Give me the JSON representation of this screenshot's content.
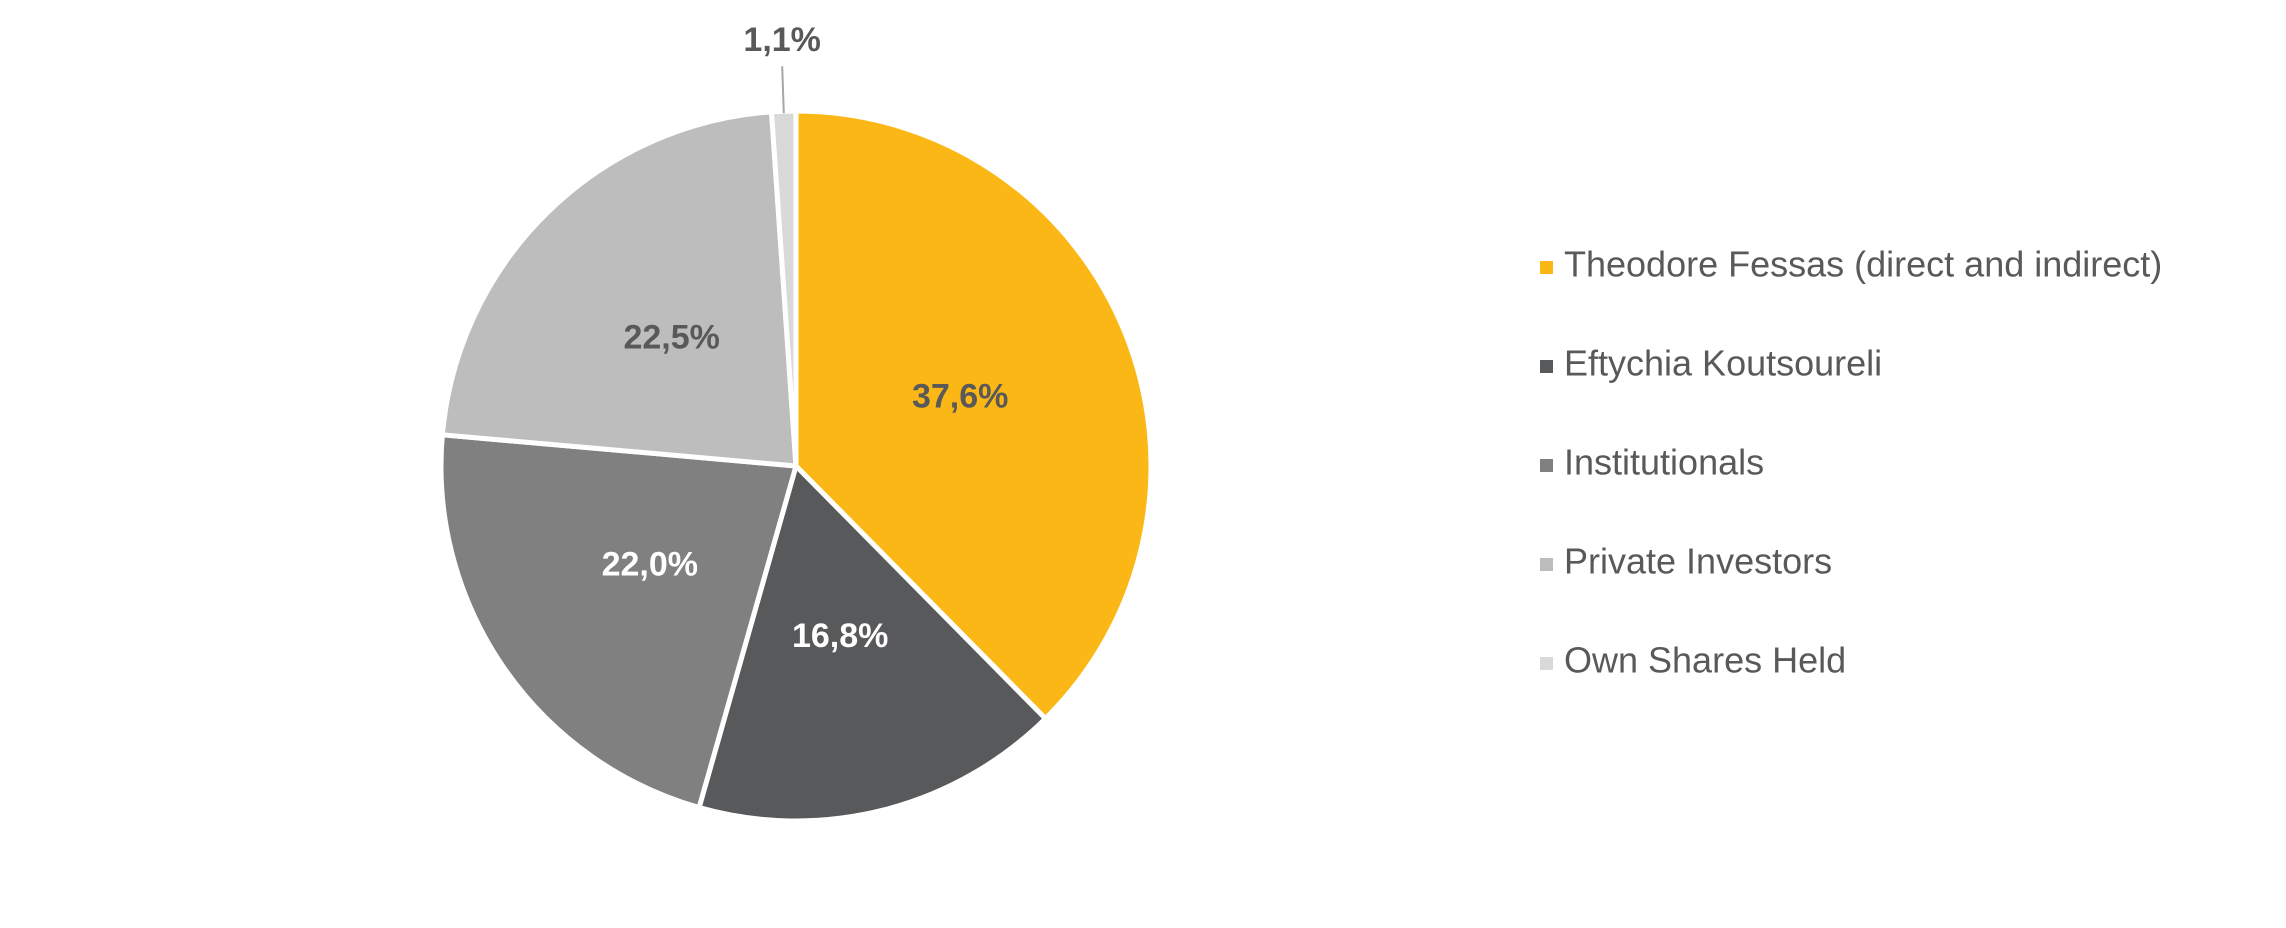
{
  "chart_data": {
    "type": "pie",
    "categories": [
      "Theodore Fessas (direct and indirect)",
      "Eftychia Koutsoureli",
      "Institutionals",
      "Private Investors",
      "Own Shares Held"
    ],
    "values": [
      37.6,
      16.8,
      22.0,
      22.5,
      1.1
    ],
    "value_labels": [
      "37,6%",
      "16,8%",
      "22,0%",
      "22,5%",
      "1,1%"
    ],
    "colors": [
      "#fbb715",
      "#58595b",
      "#808080",
      "#bdbdbd",
      "#d9d9d9"
    ],
    "legend": "right"
  }
}
